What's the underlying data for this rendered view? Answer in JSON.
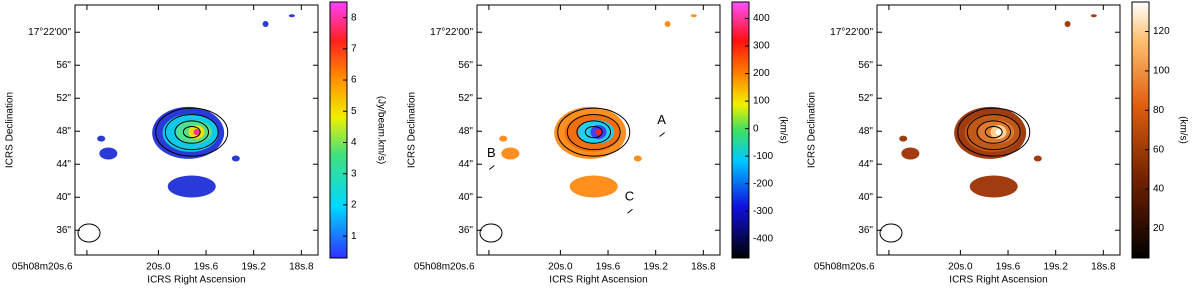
{
  "chart_data": [
    {
      "type": "image",
      "xlabel": "ICRS Right Ascension",
      "ylabel": "ICRS Declination",
      "xlim": [
        20.7,
        18.66
      ],
      "xticks": [
        {
          "value": 20.6,
          "label": "05h08m20s.6"
        },
        {
          "value": 20.0,
          "label": "20s.0"
        },
        {
          "value": 19.6,
          "label": "19s.6"
        },
        {
          "value": 19.2,
          "label": "19s.2"
        },
        {
          "value": 18.8,
          "label": "18s.8"
        }
      ],
      "ylim": [
        33,
        63.3
      ],
      "yticks": [
        {
          "value": 60,
          "label": "17°22'00\""
        },
        {
          "value": 56,
          "label": "56\""
        },
        {
          "value": 52,
          "label": "52\""
        },
        {
          "value": 48,
          "label": "48\""
        },
        {
          "value": 44,
          "label": "44\""
        },
        {
          "value": 40,
          "label": "40\""
        },
        {
          "value": 36,
          "label": "36\""
        }
      ],
      "colorbar_label": "(Jy/beam.km/s)",
      "clim": [
        0.3,
        8.5
      ],
      "cticks": [
        1,
        2,
        3,
        4,
        5,
        6,
        7,
        8
      ],
      "colormap": "rainbow"
    },
    {
      "type": "image",
      "xlabel": "ICRS Right Ascension",
      "ylabel": "ICRS Declination",
      "xlim": [
        20.7,
        18.66
      ],
      "xticks": [
        {
          "value": 20.6,
          "label": "05h08m20s.6"
        },
        {
          "value": 20.0,
          "label": "20s.0"
        },
        {
          "value": 19.6,
          "label": "19s.6"
        },
        {
          "value": 19.2,
          "label": "19s.2"
        },
        {
          "value": 18.8,
          "label": "18s.8"
        }
      ],
      "ylim": [
        33,
        63.3
      ],
      "yticks": [
        {
          "value": 60,
          "label": "17°22'00\""
        },
        {
          "value": 56,
          "label": "56\""
        },
        {
          "value": 52,
          "label": "52\""
        },
        {
          "value": 48,
          "label": "48\""
        },
        {
          "value": 44,
          "label": "44\""
        },
        {
          "value": 40,
          "label": "40\""
        },
        {
          "value": 36,
          "label": "36\""
        }
      ],
      "colorbar_label": "(km/s)",
      "clim": [
        -470,
        460
      ],
      "cticks": [
        -400,
        -300,
        -200,
        -100,
        0,
        100,
        200,
        300,
        400
      ],
      "colormap": "velocity",
      "annotations": [
        "A",
        "B",
        "C"
      ]
    },
    {
      "type": "image",
      "xlabel": "ICRS Right Ascension",
      "ylabel": "ICRS Declination",
      "xlim": [
        20.7,
        18.66
      ],
      "xticks": [
        {
          "value": 20.6,
          "label": "05h08m20s.6"
        },
        {
          "value": 20.0,
          "label": "20s.0"
        },
        {
          "value": 19.6,
          "label": "19s.6"
        },
        {
          "value": 19.2,
          "label": "19s.2"
        },
        {
          "value": 18.8,
          "label": "18s.8"
        }
      ],
      "ylim": [
        33,
        63.3
      ],
      "yticks": [
        {
          "value": 60,
          "label": "17°22'00\""
        },
        {
          "value": 56,
          "label": "56\""
        },
        {
          "value": 52,
          "label": "52\""
        },
        {
          "value": 48,
          "label": "48\""
        },
        {
          "value": 44,
          "label": "44\""
        },
        {
          "value": 40,
          "label": "40\""
        },
        {
          "value": 36,
          "label": "36\""
        }
      ],
      "colorbar_label": "(km/s)",
      "clim": [
        5,
        135
      ],
      "cticks": [
        20,
        40,
        60,
        80,
        100,
        120
      ],
      "colormap": "heat"
    }
  ]
}
